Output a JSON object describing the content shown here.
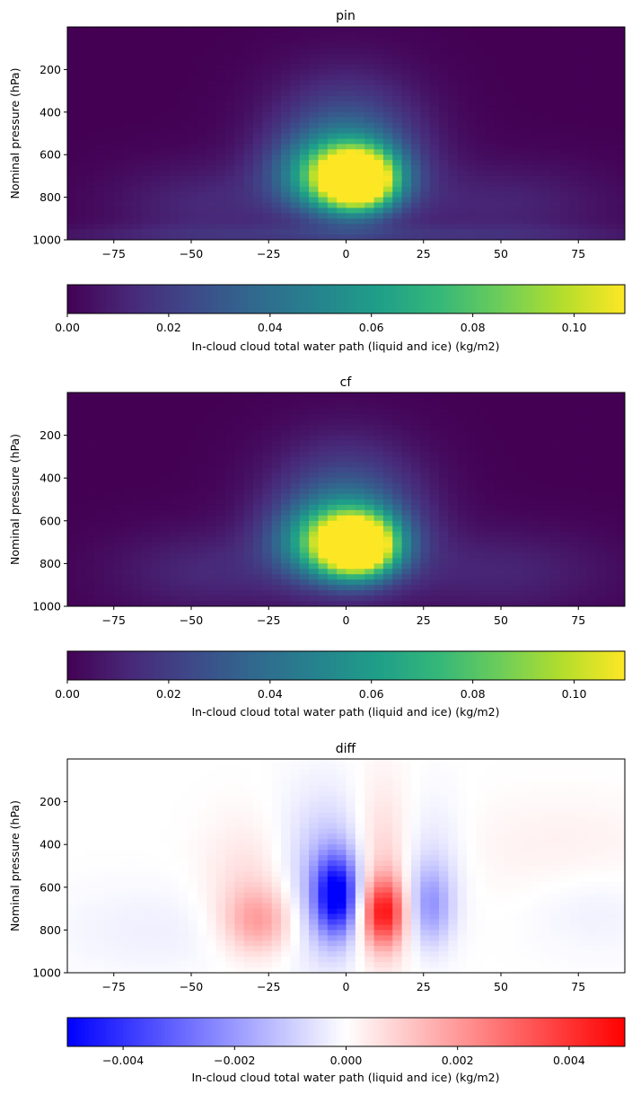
{
  "chart_data": [
    {
      "type": "heatmap",
      "title": "pin",
      "ylabel": "Nominal pressure (hPa)",
      "xlim": [
        -90,
        90
      ],
      "ylim": [
        1000,
        0
      ],
      "x_ticks": [
        "−75",
        "−50",
        "−25",
        "0",
        "25",
        "50",
        "75"
      ],
      "x_tick_values": [
        -75,
        -50,
        -25,
        0,
        25,
        50,
        75
      ],
      "y_ticks": [
        "200",
        "400",
        "600",
        "800",
        "1000"
      ],
      "y_tick_values": [
        200,
        400,
        600,
        800,
        1000
      ],
      "colormap": "viridis",
      "colorbar": {
        "label": "In-cloud cloud total water path (liquid and ice) (kg/m2)",
        "range": [
          0,
          0.11
        ],
        "ticks": [
          "0.00",
          "0.02",
          "0.04",
          "0.06",
          "0.08",
          "0.10"
        ],
        "tick_values": [
          0,
          0.02,
          0.04,
          0.06,
          0.08,
          0.1
        ]
      },
      "features": [
        {
          "lat": 4,
          "pressure": 720,
          "value": 0.11,
          "lat_width": 8,
          "p_width": 90
        },
        {
          "lat": -2,
          "pressure": 700,
          "value": 0.065,
          "lat_width": 13,
          "p_width": 120
        },
        {
          "lat": 0,
          "pressure": 560,
          "value": 0.035,
          "lat_width": 17,
          "p_width": 220
        },
        {
          "lat": -45,
          "pressure": 840,
          "value": 0.012,
          "lat_width": 22,
          "p_width": 140
        },
        {
          "lat": 50,
          "pressure": 840,
          "value": 0.011,
          "lat_width": 26,
          "p_width": 140
        },
        {
          "lat": 0,
          "pressure": 980,
          "value": 0.012,
          "lat_width": 70,
          "p_width": 35
        }
      ]
    },
    {
      "type": "heatmap",
      "title": "cf",
      "ylabel": "Nominal pressure (hPa)",
      "xlim": [
        -90,
        90
      ],
      "ylim": [
        1000,
        0
      ],
      "x_ticks": [
        "−75",
        "−50",
        "−25",
        "0",
        "25",
        "50",
        "75"
      ],
      "x_tick_values": [
        -75,
        -50,
        -25,
        0,
        25,
        50,
        75
      ],
      "y_ticks": [
        "200",
        "400",
        "600",
        "800",
        "1000"
      ],
      "y_tick_values": [
        200,
        400,
        600,
        800,
        1000
      ],
      "colormap": "viridis",
      "colorbar": {
        "label": "In-cloud cloud total water path (liquid and ice) (kg/m2)",
        "range": [
          0,
          0.11
        ],
        "ticks": [
          "0.00",
          "0.02",
          "0.04",
          "0.06",
          "0.08",
          "0.10"
        ],
        "tick_values": [
          0,
          0.02,
          0.04,
          0.06,
          0.08,
          0.1
        ]
      },
      "features": [
        {
          "lat": 4,
          "pressure": 720,
          "value": 0.105,
          "lat_width": 8,
          "p_width": 90
        },
        {
          "lat": -2,
          "pressure": 700,
          "value": 0.07,
          "lat_width": 13,
          "p_width": 120
        },
        {
          "lat": 0,
          "pressure": 560,
          "value": 0.035,
          "lat_width": 17,
          "p_width": 220
        },
        {
          "lat": -45,
          "pressure": 840,
          "value": 0.012,
          "lat_width": 22,
          "p_width": 140
        },
        {
          "lat": 50,
          "pressure": 840,
          "value": 0.011,
          "lat_width": 26,
          "p_width": 140
        }
      ]
    },
    {
      "type": "heatmap",
      "title": "diff",
      "ylabel": "Nominal pressure (hPa)",
      "xlim": [
        -90,
        90
      ],
      "ylim": [
        1000,
        0
      ],
      "x_ticks": [
        "−75",
        "−50",
        "−25",
        "0",
        "25",
        "50",
        "75"
      ],
      "x_tick_values": [
        -75,
        -50,
        -25,
        0,
        25,
        50,
        75
      ],
      "y_ticks": [
        "200",
        "400",
        "600",
        "800",
        "1000"
      ],
      "y_tick_values": [
        200,
        400,
        600,
        800,
        1000
      ],
      "colormap": "bwr",
      "colorbar": {
        "label": "In-cloud cloud total water path (liquid and ice) (kg/m2)",
        "range": [
          -0.005,
          0.005
        ],
        "ticks": [
          "−0.004",
          "−0.002",
          "0.000",
          "0.002",
          "0.004"
        ],
        "tick_values": [
          -0.004,
          -0.002,
          0,
          0.002,
          0.004
        ]
      },
      "features": [
        {
          "lat": -3,
          "pressure": 640,
          "value": -0.0045,
          "lat_width": 5,
          "p_width": 130
        },
        {
          "lat": -5,
          "pressure": 560,
          "value": -0.0015,
          "lat_width": 12,
          "p_width": 260
        },
        {
          "lat": 12,
          "pressure": 720,
          "value": 0.004,
          "lat_width": 5,
          "p_width": 110
        },
        {
          "lat": 11,
          "pressure": 550,
          "value": 0.0015,
          "lat_width": 7,
          "p_width": 280
        },
        {
          "lat": -28,
          "pressure": 760,
          "value": 0.0018,
          "lat_width": 8,
          "p_width": 110
        },
        {
          "lat": -30,
          "pressure": 560,
          "value": 0.0007,
          "lat_width": 11,
          "p_width": 200
        },
        {
          "lat": 27,
          "pressure": 690,
          "value": -0.0018,
          "lat_width": 5,
          "p_width": 130
        },
        {
          "lat": 27,
          "pressure": 500,
          "value": -0.0006,
          "lat_width": 8,
          "p_width": 220
        },
        {
          "lat": 70,
          "pressure": 420,
          "value": 0.0003,
          "lat_width": 25,
          "p_width": 170
        },
        {
          "lat": -60,
          "pressure": 800,
          "value": -0.0003,
          "lat_width": 25,
          "p_width": 150
        },
        {
          "lat": 80,
          "pressure": 700,
          "value": -0.0003,
          "lat_width": 15,
          "p_width": 150
        }
      ]
    }
  ]
}
